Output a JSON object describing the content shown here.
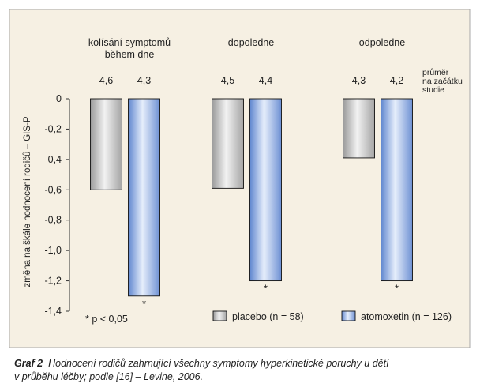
{
  "chart_data": {
    "type": "bar",
    "ylabel": "změna na škále hodnocení rodičů – GIS-P",
    "ylim": [
      -1.4,
      0
    ],
    "yticks": [
      "0",
      "-0,2",
      "-0,4",
      "-0,6",
      "-0,8",
      "-1,0",
      "-1,2",
      "-1,4"
    ],
    "ytick_values": [
      0,
      -0.2,
      -0.4,
      -0.6,
      -0.8,
      -1.0,
      -1.2,
      -1.4
    ],
    "baseline_header": "průměr na začátku studie",
    "baseline_header_lines": [
      "průměr",
      "na začátku",
      "studie"
    ],
    "categories": [
      {
        "lines": [
          "kolísání symptomů",
          "během dne"
        ]
      },
      {
        "lines": [
          "dopoledne"
        ]
      },
      {
        "lines": [
          "odpoledne"
        ]
      }
    ],
    "series": [
      {
        "name": "placebo (n = 58)",
        "values": [
          -0.6,
          -0.59,
          -0.39
        ],
        "baseline": [
          "4,6",
          "4,5",
          "4,3"
        ],
        "color": "#c4c4c4",
        "significance": [
          "",
          "",
          ""
        ]
      },
      {
        "name": "atomoxetin (n = 126)",
        "values": [
          -1.3,
          -1.2,
          -1.2
        ],
        "baseline": [
          "4,3",
          "4,4",
          "4,2"
        ],
        "color": "#a9c2ea",
        "significance": [
          "*",
          "*",
          "*"
        ]
      }
    ],
    "footnote": "* p < 0,05",
    "legend_placement": "bottom-right",
    "grid": false,
    "background_color": "#f6f0e3",
    "frame_color": "#a8a8a8"
  },
  "caption": {
    "label": "Graf 2",
    "text_line1": "Hodnocení rodičů zahrnující všechny symptomy hyperkinetické poruchy u dětí",
    "text_line2": "v průběhu léčby; podle [16] – Levine, 2006."
  }
}
